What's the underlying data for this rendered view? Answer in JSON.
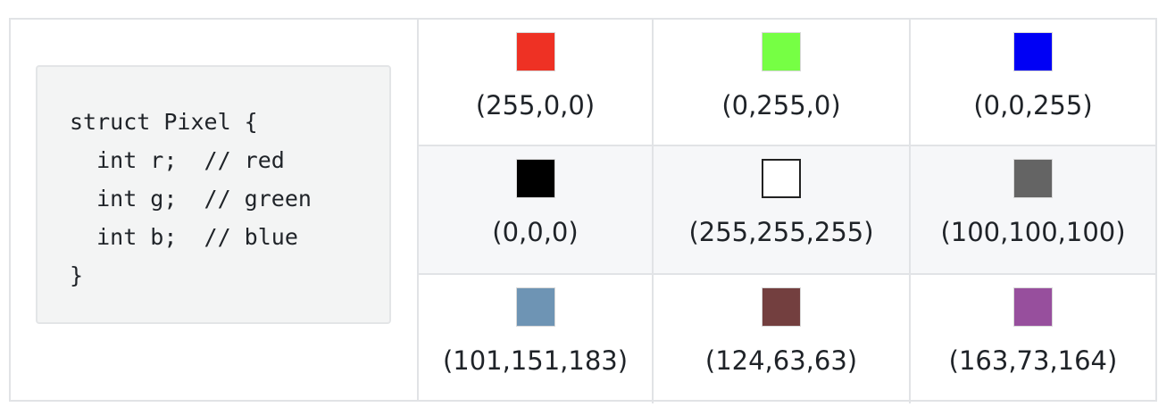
{
  "code": {
    "lines": [
      "struct Pixel {",
      "  int r;  // red",
      "  int g;  // green",
      "  int b;  // blue",
      "}"
    ]
  },
  "swatches": [
    {
      "label": "(255,0,0)",
      "color": "#ee3124"
    },
    {
      "label": "(0,255,0)",
      "color": "#76ff44"
    },
    {
      "label": "(0,0,255)",
      "color": "#0000f5"
    },
    {
      "label": "(0,0,0)",
      "color": "#000000"
    },
    {
      "label": "(255,255,255)",
      "color": "#ffffff"
    },
    {
      "label": "(100,100,100)",
      "color": "#646464"
    },
    {
      "label": "(101,151,183)",
      "color": "#6e94b4"
    },
    {
      "label": "(124,63,63)",
      "color": "#733f3f"
    },
    {
      "label": "(163,73,164)",
      "color": "#974f9d"
    }
  ]
}
